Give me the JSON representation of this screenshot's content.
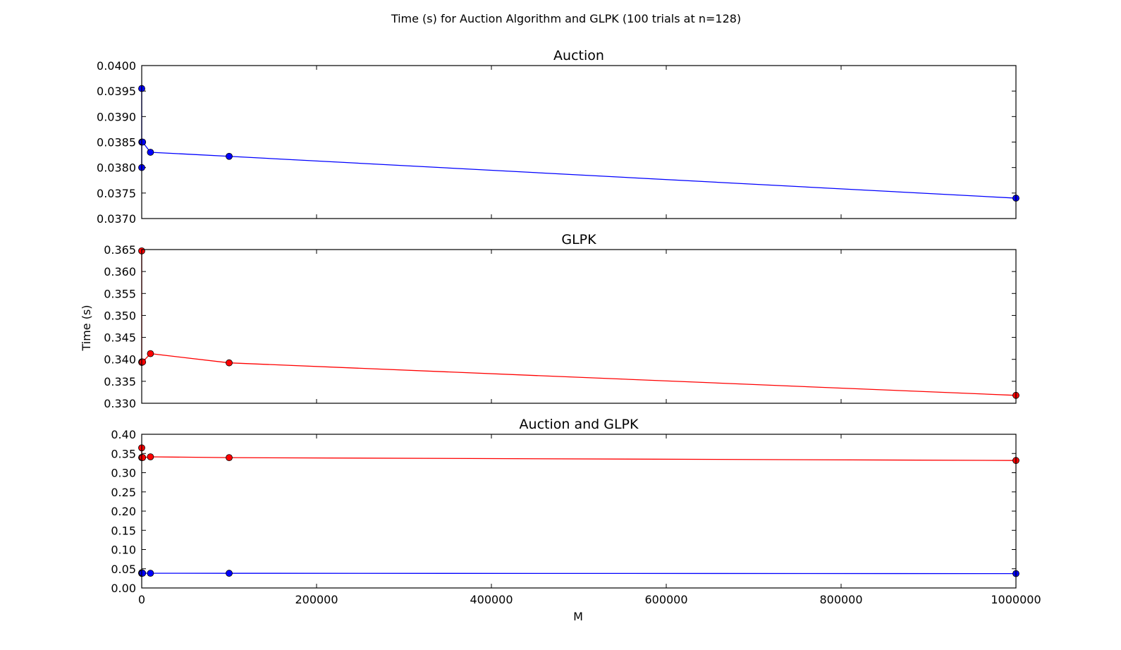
{
  "suptitle": "Time (s) for Auction Algorithm and GLPK (100 trials at n=128)",
  "xlabel": "M",
  "ylabel": "Time (s)",
  "colors": {
    "auction": "#0000ff",
    "glpk": "#ff0000",
    "marker_edge": "#000000"
  },
  "chart_data": [
    {
      "type": "line",
      "title": "Auction",
      "x": [
        0,
        10,
        100,
        1000,
        10000,
        100000,
        1000000
      ],
      "series": [
        {
          "color_key": "auction",
          "values": [
            0.03955,
            0.038,
            0.0385,
            0.0385,
            0.0383,
            0.03822,
            0.0374
          ]
        }
      ],
      "xlim": [
        0,
        1000000
      ],
      "ylim": [
        0.037,
        0.04
      ],
      "xticks": [
        0,
        200000,
        400000,
        600000,
        800000,
        1000000
      ],
      "yticks": [
        "0.0370",
        "0.0375",
        "0.0380",
        "0.0385",
        "0.0390",
        "0.0395",
        "0.0400"
      ],
      "show_xticklabels": false,
      "grid": false
    },
    {
      "type": "line",
      "title": "GLPK",
      "x": [
        0,
        10,
        100,
        1000,
        10000,
        100000,
        1000000
      ],
      "series": [
        {
          "color_key": "glpk",
          "values": [
            0.3647,
            0.3394,
            0.3393,
            0.3394,
            0.3413,
            0.3392,
            0.3318
          ]
        }
      ],
      "xlim": [
        0,
        1000000
      ],
      "ylim": [
        0.33,
        0.365
      ],
      "xticks": [
        0,
        200000,
        400000,
        600000,
        800000,
        1000000
      ],
      "yticks": [
        "0.330",
        "0.335",
        "0.340",
        "0.345",
        "0.350",
        "0.355",
        "0.360",
        "0.365"
      ],
      "show_xticklabels": false,
      "grid": false
    },
    {
      "type": "line",
      "title": "Auction and GLPK",
      "x": [
        0,
        10,
        100,
        1000,
        10000,
        100000,
        1000000
      ],
      "series": [
        {
          "color_key": "glpk",
          "values": [
            0.3647,
            0.3394,
            0.3393,
            0.3394,
            0.3413,
            0.3392,
            0.3318
          ]
        },
        {
          "color_key": "auction",
          "values": [
            0.03955,
            0.038,
            0.0385,
            0.0385,
            0.0383,
            0.03822,
            0.0374
          ]
        }
      ],
      "xlim": [
        0,
        1000000
      ],
      "ylim": [
        0.0,
        0.4
      ],
      "xticks": [
        0,
        200000,
        400000,
        600000,
        800000,
        1000000
      ],
      "xticklabels": [
        "0",
        "200000",
        "400000",
        "600000",
        "800000",
        "1000000"
      ],
      "yticks": [
        "0.00",
        "0.05",
        "0.10",
        "0.15",
        "0.20",
        "0.25",
        "0.30",
        "0.35",
        "0.40"
      ],
      "show_xticklabels": true,
      "grid": false
    }
  ]
}
